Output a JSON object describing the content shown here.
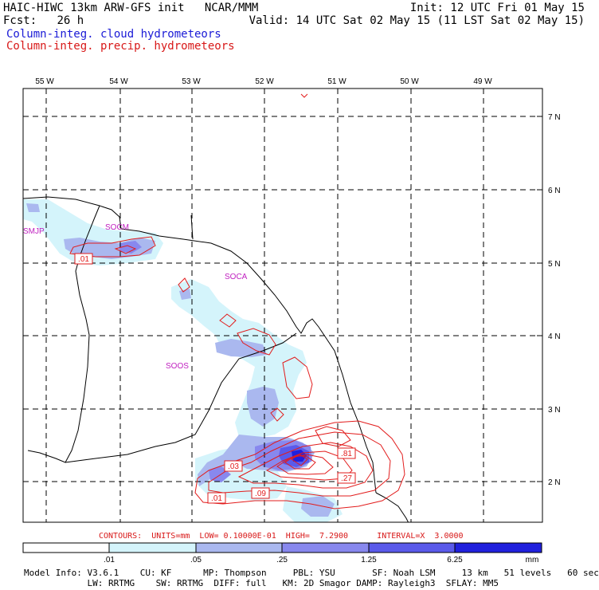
{
  "header": {
    "title": "HAIC-HIWC 13km ARW-GFS init   NCAR/MMM",
    "init": "Init: 12 UTC Fri 01 May 15",
    "fcst_label": "Fcst:",
    "fcst_value": "26 h",
    "valid": "Valid: 14 UTC Sat 02 May 15 (11 LST Sat 02 May 15)",
    "field1": "Column-integ. cloud hydrometeors",
    "field2": "Column-integ. precip. hydrometeors"
  },
  "colors": {
    "cloud_text": "#1a1ad6",
    "precip_text": "#d81818",
    "shade_1": "#d4f4fb",
    "shade_2": "#aab8ef",
    "shade_3": "#8888ee",
    "shade_4": "#5a5aea",
    "shade_5": "#2020dd",
    "contour": "#e21c1c"
  },
  "map": {
    "lon_labels": [
      "55 W",
      "54 W",
      "53 W",
      "52 W",
      "51 W",
      "50 W",
      "49 W"
    ],
    "lat_labels": [
      "7 N",
      "6 N",
      "5 N",
      "4 N",
      "3 N",
      "2 N"
    ],
    "stations": [
      "SMJP",
      "SOCM",
      "SOCA",
      "SOOS"
    ],
    "contour_labels": [
      ".01",
      ".03",
      ".09",
      ".01",
      ".81",
      ".27"
    ]
  },
  "contours_text": {
    "line": "CONTOURS:  UNITS=mm  LOW= 0.10000E-01  HIGH=  7.2900      INTERVAL=X  3.0000"
  },
  "colorbar": {
    "ticks": [
      ".01",
      ".05",
      ".25",
      "1.25",
      "6.25"
    ],
    "units": "mm"
  },
  "model_info": {
    "line1": "Model Info: V3.6.1    CU: KF      MP: Thompson     PBL: YSU       SF: Noah LSM     13 km   51 levels   60 sec",
    "line2": "            LW: RRTMG    SW: RRTMG  DIFF: full   KM: 2D Smagor DAMP: Rayleigh3  SFLAY: MM5"
  }
}
